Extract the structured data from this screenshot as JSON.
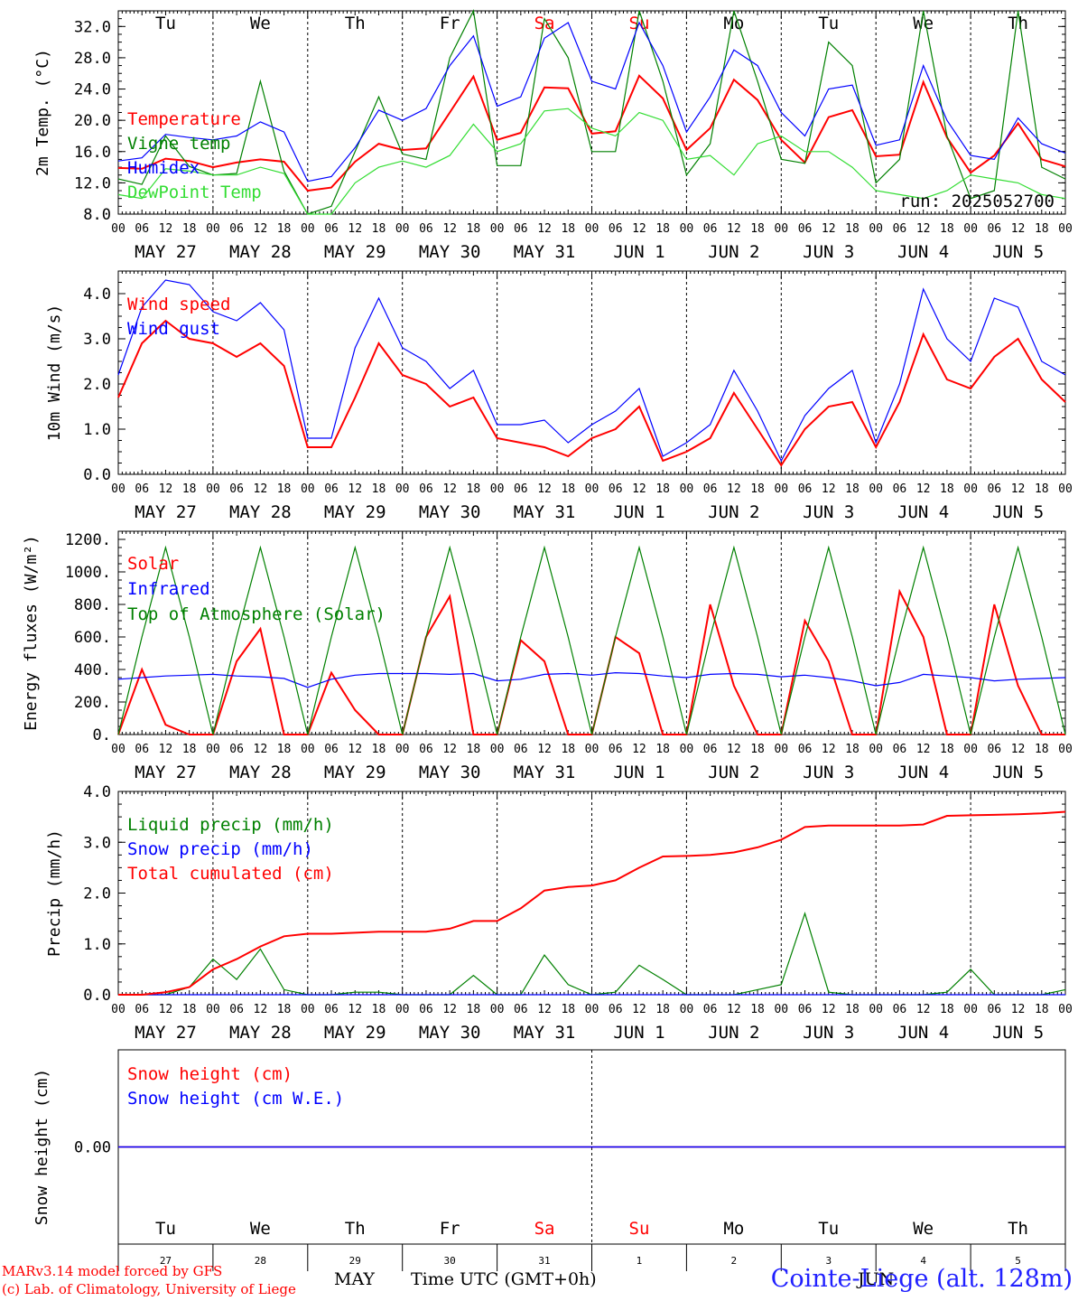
{
  "footer": {
    "credit_line1": "MARv3.14 model forced by GFS",
    "credit_line2": "(c) Lab. of Climatology, University of Liege",
    "station": "Cointe-Liege (alt. 128m)",
    "xaxis_title": "Time UTC (GMT+0h)",
    "month_left": "MAY",
    "month_right": "JUN"
  },
  "colors": {
    "red": "#ff0000",
    "dark_green": "#008000",
    "blue": "#0000ff",
    "light_green": "#33dd33",
    "black": "#000000"
  },
  "hour_ticks": [
    "00",
    "06",
    "12",
    "18"
  ],
  "day_labels": [
    "MAY 27",
    "MAY 28",
    "MAY 29",
    "MAY 30",
    "MAY 31",
    "JUN  1",
    "JUN  2",
    "JUN  3",
    "JUN  4",
    "JUN  5"
  ],
  "weekdays": [
    "Tu",
    "We",
    "Th",
    "Fr",
    "Sa",
    "Su",
    "Mo",
    "Tu",
    "We",
    "Th"
  ],
  "weekend_indices": [
    4,
    5
  ],
  "day_numbers": [
    "27",
    "28",
    "29",
    "30",
    "31",
    "1",
    "2",
    "3",
    "4",
    "5"
  ],
  "chart_data": [
    {
      "type": "line",
      "ylabel": "2m Temp. (°C)",
      "ylim": [
        8,
        34
      ],
      "yticks": [
        "8.0",
        "12.0",
        "16.0",
        "20.0",
        "24.0",
        "28.0",
        "32.0"
      ],
      "annotation": "run: 2025052700",
      "legend_placement": "top-left",
      "x_step_hours": 6,
      "series": [
        {
          "name": "Temperature",
          "color": "#ff0000",
          "values": [
            13.9,
            13.8,
            15.1,
            14.8,
            14.0,
            14.6,
            15.0,
            14.7,
            11.0,
            11.4,
            14.7,
            17.0,
            16.2,
            16.4,
            21.0,
            25.6,
            17.5,
            18.4,
            24.2,
            24.1,
            18.3,
            18.6,
            25.7,
            22.8,
            16.2,
            19.0,
            25.2,
            22.6,
            17.5,
            14.6,
            20.4,
            21.3,
            15.4,
            15.6,
            24.9,
            17.8,
            13.3,
            15.5,
            19.6,
            15.0,
            14.1
          ]
        },
        {
          "name": "Vigne temp",
          "color": "#008000",
          "values": [
            12.5,
            11.8,
            18.0,
            14.1,
            13.0,
            13.2,
            25.0,
            13.5,
            8.0,
            9.0,
            16.0,
            23.0,
            15.7,
            15.0,
            28.0,
            34.0,
            14.2,
            14.2,
            33.0,
            28.0,
            16.0,
            16.0,
            35.0,
            25.0,
            13.0,
            17.0,
            36.0,
            25.0,
            15.0,
            14.5,
            30.0,
            27.0,
            12.0,
            15.0,
            35.0,
            18.0,
            10.0,
            11.0,
            34.0,
            14.0,
            12.5
          ]
        },
        {
          "name": "Humidex",
          "color": "#0000ff",
          "values": [
            14.8,
            15.2,
            18.2,
            17.8,
            17.5,
            18.0,
            19.8,
            18.5,
            12.2,
            12.8,
            16.5,
            21.3,
            20.0,
            21.5,
            27.0,
            30.8,
            21.8,
            23.0,
            30.5,
            32.5,
            25.0,
            24.0,
            32.5,
            27.0,
            18.5,
            23.0,
            29.0,
            27.0,
            21.0,
            18.0,
            24.0,
            24.5,
            16.8,
            17.5,
            27.0,
            20.0,
            15.5,
            15.0,
            20.3,
            17.0,
            15.8
          ]
        },
        {
          "name": "DewPoint Temp",
          "color": "#33dd33",
          "values": [
            10.5,
            10.0,
            13.8,
            13.5,
            13.0,
            13.0,
            14.0,
            13.2,
            7.5,
            8.0,
            12.0,
            14.0,
            14.8,
            14.0,
            15.5,
            19.5,
            16.0,
            17.0,
            21.2,
            21.5,
            19.0,
            18.0,
            21.0,
            20.0,
            15.0,
            15.5,
            13.0,
            17.0,
            18.0,
            16.0,
            16.0,
            14.0,
            11.0,
            10.5,
            10.0,
            11.0,
            13.0,
            12.5,
            12.0,
            10.5,
            10.0
          ]
        }
      ]
    },
    {
      "type": "line",
      "ylabel": "10m Wind (m/s)",
      "ylim": [
        0,
        4.5
      ],
      "yticks": [
        "0.0",
        "1.0",
        "2.0",
        "3.0",
        "4.0"
      ],
      "legend_placement": "top-left",
      "x_step_hours": 6,
      "series": [
        {
          "name": "Wind speed",
          "color": "#ff0000",
          "values": [
            1.7,
            2.9,
            3.4,
            3.0,
            2.9,
            2.6,
            2.9,
            2.4,
            0.6,
            0.6,
            1.7,
            2.9,
            2.2,
            2.0,
            1.5,
            1.7,
            0.8,
            0.7,
            0.6,
            0.4,
            0.8,
            1.0,
            1.5,
            0.3,
            0.5,
            0.8,
            1.8,
            1.0,
            0.2,
            1.0,
            1.5,
            1.6,
            0.6,
            1.6,
            3.1,
            2.1,
            1.9,
            2.6,
            3.0,
            2.1,
            1.6
          ]
        },
        {
          "name": "Wind gust",
          "color": "#0000ff",
          "values": [
            2.2,
            3.7,
            4.3,
            4.2,
            3.6,
            3.4,
            3.8,
            3.2,
            0.8,
            0.8,
            2.8,
            3.9,
            2.8,
            2.5,
            1.9,
            2.3,
            1.1,
            1.1,
            1.2,
            0.7,
            1.1,
            1.4,
            1.9,
            0.4,
            0.7,
            1.1,
            2.3,
            1.4,
            0.3,
            1.3,
            1.9,
            2.3,
            0.7,
            2.0,
            4.1,
            3.0,
            2.5,
            3.9,
            3.7,
            2.5,
            2.2
          ]
        }
      ]
    },
    {
      "type": "line",
      "ylabel": "Energy fluxes (W/m²)",
      "ylim": [
        0,
        1250
      ],
      "yticks": [
        "0.",
        "200.",
        "400.",
        "600.",
        "800.",
        "1000.",
        "1200."
      ],
      "legend_placement": "top-left",
      "x_step_hours": 6,
      "series": [
        {
          "name": "Solar",
          "color": "#ff0000",
          "values": [
            0,
            400,
            60,
            0,
            0,
            450,
            650,
            0,
            0,
            380,
            150,
            0,
            0,
            600,
            850,
            0,
            0,
            580,
            450,
            0,
            0,
            600,
            500,
            0,
            0,
            800,
            300,
            0,
            0,
            700,
            450,
            0,
            0,
            880,
            600,
            0,
            0,
            800,
            300,
            0,
            0
          ]
        },
        {
          "name": "Infrared",
          "color": "#0000ff",
          "values": [
            340,
            350,
            360,
            365,
            370,
            360,
            355,
            345,
            290,
            340,
            365,
            375,
            375,
            375,
            370,
            375,
            330,
            340,
            370,
            375,
            365,
            380,
            375,
            360,
            350,
            370,
            375,
            370,
            355,
            365,
            350,
            330,
            300,
            320,
            370,
            360,
            350,
            330,
            340,
            345,
            350
          ]
        },
        {
          "name": "Top of Atmosphere (Solar)",
          "color": "#008000",
          "values": [
            0,
            600,
            1150,
            600,
            0,
            600,
            1150,
            600,
            0,
            600,
            1150,
            600,
            0,
            600,
            1150,
            600,
            0,
            600,
            1150,
            600,
            0,
            600,
            1150,
            600,
            0,
            600,
            1150,
            600,
            0,
            600,
            1150,
            600,
            0,
            600,
            1150,
            600,
            0,
            600,
            1150,
            600,
            0
          ]
        }
      ]
    },
    {
      "type": "line",
      "ylabel": "Precip (mm/h)",
      "ylim": [
        0,
        4
      ],
      "yticks": [
        "0.0",
        "1.0",
        "2.0",
        "3.0",
        "4.0"
      ],
      "legend_placement": "top-left",
      "x_step_hours": 6,
      "series": [
        {
          "name": "Liquid precip (mm/h)",
          "color": "#008000",
          "values": [
            0,
            0,
            0,
            0.15,
            0.7,
            0.3,
            0.9,
            0.1,
            0,
            0,
            0.05,
            0.05,
            0,
            0,
            0,
            0.38,
            0,
            0,
            0.78,
            0.2,
            0,
            0.05,
            0.58,
            0.3,
            0,
            0,
            0,
            0.1,
            0.2,
            1.6,
            0.05,
            0,
            0,
            0,
            0,
            0.05,
            0.5,
            0,
            0,
            0,
            0.1
          ]
        },
        {
          "name": "Snow precip (mm/h)",
          "color": "#0000ff",
          "values": [
            0,
            0,
            0,
            0,
            0,
            0,
            0,
            0,
            0,
            0,
            0,
            0,
            0,
            0,
            0,
            0,
            0,
            0,
            0,
            0,
            0,
            0,
            0,
            0,
            0,
            0,
            0,
            0,
            0,
            0,
            0,
            0,
            0,
            0,
            0,
            0,
            0,
            0,
            0,
            0,
            0
          ]
        },
        {
          "name": "Total cumulated (cm)",
          "color": "#ff0000",
          "values": [
            0,
            0,
            0.05,
            0.15,
            0.5,
            0.7,
            0.95,
            1.15,
            1.2,
            1.2,
            1.22,
            1.24,
            1.24,
            1.24,
            1.3,
            1.45,
            1.45,
            1.7,
            2.05,
            2.12,
            2.15,
            2.25,
            2.5,
            2.72,
            2.73,
            2.75,
            2.8,
            2.9,
            3.05,
            3.3,
            3.33,
            3.33,
            3.33,
            3.33,
            3.35,
            3.52,
            3.53,
            3.54,
            3.55,
            3.57,
            3.6
          ]
        }
      ]
    },
    {
      "type": "line",
      "ylabel": "Snow height (cm)",
      "yticks": [
        "0.00"
      ],
      "legend_placement": "top-left",
      "series": [
        {
          "name": "Snow height (cm)",
          "color": "#ff0000",
          "values": [
            0,
            0,
            0,
            0,
            0,
            0,
            0,
            0,
            0,
            0,
            0
          ]
        },
        {
          "name": "Snow height (cm W.E.)",
          "color": "#0000ff",
          "values": [
            0,
            0,
            0,
            0,
            0,
            0,
            0,
            0,
            0,
            0,
            0
          ]
        }
      ]
    }
  ]
}
